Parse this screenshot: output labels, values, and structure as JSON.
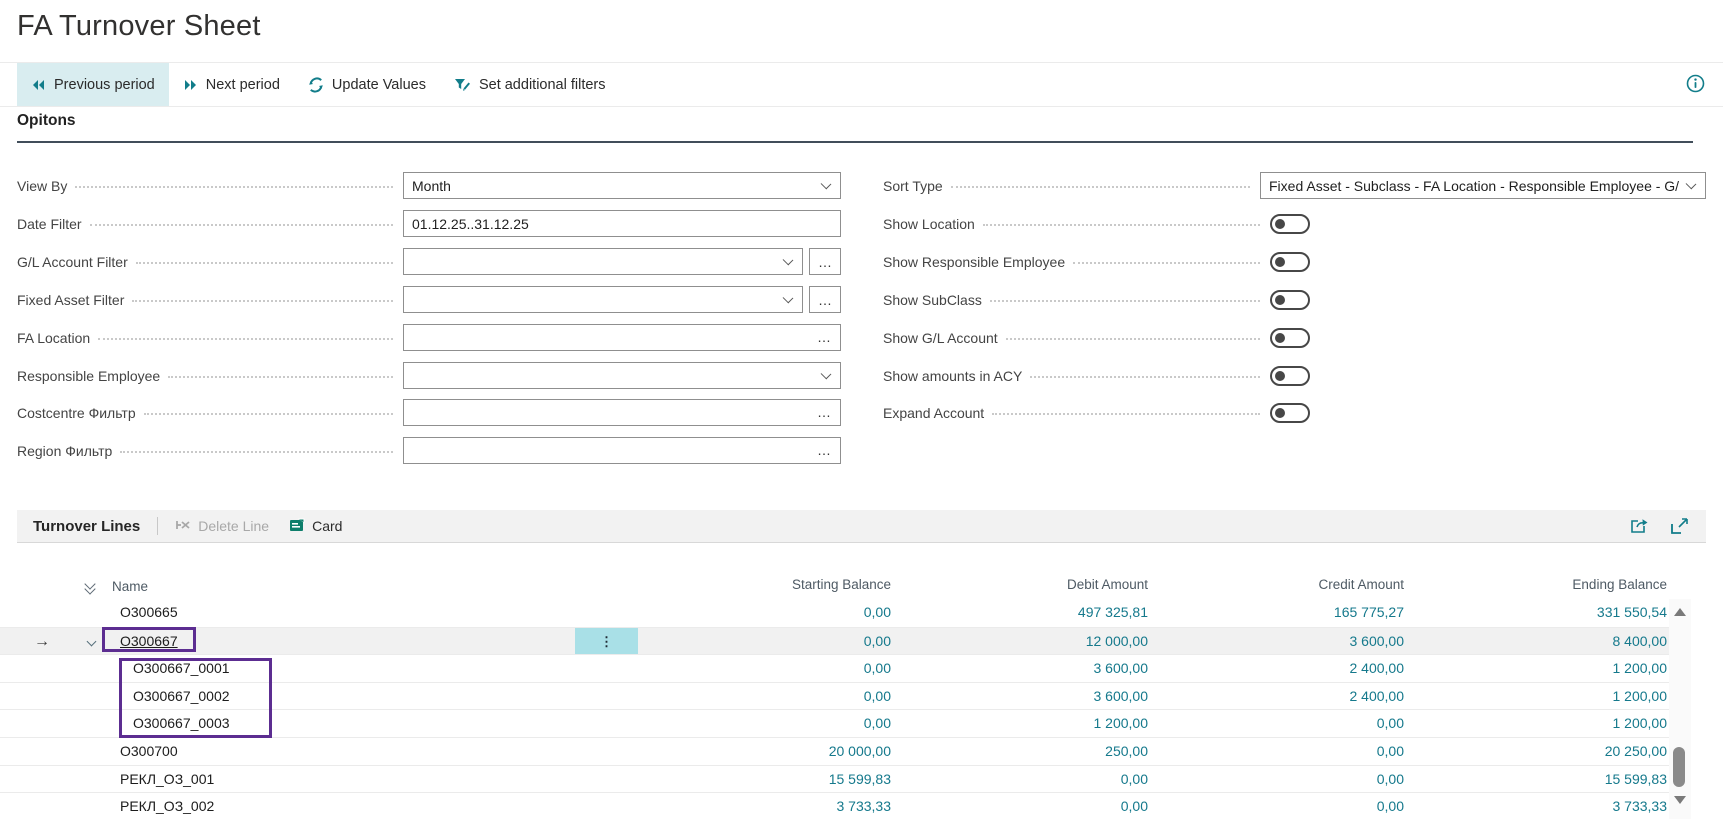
{
  "page": {
    "title": "FA Turnover Sheet"
  },
  "toolbar": {
    "buttons": [
      {
        "label": "Previous period",
        "icon": "previous-period-icon",
        "active": true
      },
      {
        "label": "Next period",
        "icon": "next-period-icon",
        "active": false
      },
      {
        "label": "Update Values",
        "icon": "refresh-icon",
        "active": false
      },
      {
        "label": "Set additional filters",
        "icon": "filter-edit-icon",
        "active": false
      }
    ],
    "info_icon": "info-icon"
  },
  "options": {
    "heading": "Opitons",
    "left_fields": [
      {
        "label": "View By",
        "value": "Month",
        "control": "combo"
      },
      {
        "label": "Date Filter",
        "value": "01.12.25..31.12.25",
        "control": "input"
      },
      {
        "label": "G/L Account Filter",
        "value": "",
        "control": "combo+assist"
      },
      {
        "label": "Fixed Asset Filter",
        "value": "",
        "control": "combo+assist"
      },
      {
        "label": "FA Location",
        "value": "",
        "control": "input+assist"
      },
      {
        "label": "Responsible Employee",
        "value": "",
        "control": "combo"
      },
      {
        "label": "Costcentre Фильтр",
        "value": "",
        "control": "input+assist"
      },
      {
        "label": "Region Фильтр",
        "value": "",
        "control": "input+assist"
      }
    ],
    "right_fields": [
      {
        "label": "Sort Type",
        "value": "Fixed Asset - Subclass - FA Location - Responsible Employee - G/L",
        "control": "combo"
      },
      {
        "label": "Show Location",
        "value": "off",
        "control": "toggle"
      },
      {
        "label": "Show Responsible Employee",
        "value": "off",
        "control": "toggle"
      },
      {
        "label": "Show SubClass",
        "value": "off",
        "control": "toggle"
      },
      {
        "label": "Show G/L Account",
        "value": "off",
        "control": "toggle"
      },
      {
        "label": "Show amounts in ACY",
        "value": "off",
        "control": "toggle"
      },
      {
        "label": "Expand Account",
        "value": "off",
        "control": "toggle"
      }
    ],
    "assist_glyph": "…"
  },
  "turnover": {
    "heading": "Turnover Lines",
    "delete_line_label": "Delete Line",
    "card_label": "Card",
    "columns": [
      "Name",
      "Starting Balance",
      "Debit Amount",
      "Credit Amount",
      "Ending Balance"
    ],
    "row_menu_glyph": "⋮",
    "rows": [
      {
        "name": "О300665",
        "level": 1,
        "selected": false,
        "starting": "0,00",
        "debit": "497 325,81",
        "credit": "165 775,27",
        "ending": "331 550,54"
      },
      {
        "name": "О300667",
        "level": 1,
        "selected": true,
        "starting": "0,00",
        "debit": "12 000,00",
        "credit": "3 600,00",
        "ending": "8 400,00"
      },
      {
        "name": "О300667_0001",
        "level": 2,
        "selected": false,
        "starting": "0,00",
        "debit": "3 600,00",
        "credit": "2 400,00",
        "ending": "1 200,00"
      },
      {
        "name": "О300667_0002",
        "level": 2,
        "selected": false,
        "starting": "0,00",
        "debit": "3 600,00",
        "credit": "2 400,00",
        "ending": "1 200,00"
      },
      {
        "name": "О300667_0003",
        "level": 2,
        "selected": false,
        "starting": "0,00",
        "debit": "1 200,00",
        "credit": "0,00",
        "ending": "1 200,00"
      },
      {
        "name": "О300700",
        "level": 1,
        "selected": false,
        "starting": "20 000,00",
        "debit": "250,00",
        "credit": "0,00",
        "ending": "20 250,00"
      },
      {
        "name": "РЕКЛ_ОЗ_001",
        "level": 1,
        "selected": false,
        "starting": "15 599,83",
        "debit": "0,00",
        "credit": "0,00",
        "ending": "15 599,83"
      },
      {
        "name": "РЕКЛ_ОЗ_002",
        "level": 1,
        "selected": false,
        "starting": "3 733,33",
        "debit": "0,00",
        "credit": "0,00",
        "ending": "3 733,33"
      }
    ]
  },
  "colors": {
    "accent_teal": "#127d8a",
    "amount_link_teal": "#15798c",
    "toolbar_active_bg": "#d9edf0",
    "row_menu_highlight": "#a9e0e7",
    "selected_row_bg": "#f1f1f1",
    "annotation_purple": "#5c2d91",
    "group_underline": "#414e5a"
  }
}
